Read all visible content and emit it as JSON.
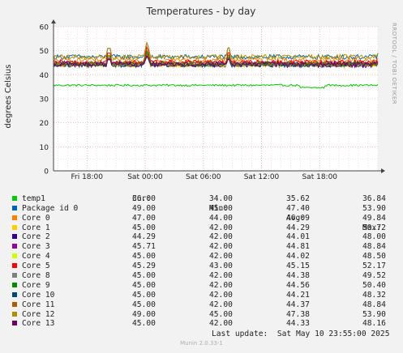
{
  "chart_data": {
    "type": "line",
    "title": "Temperatures - by day",
    "ylabel": "degrees Celsius",
    "ylim": [
      0,
      60
    ],
    "yticks": [
      0,
      10,
      20,
      30,
      40,
      50,
      60
    ],
    "x_ticks": [
      "Fri 18:00",
      "Sat 00:00",
      "Sat 06:00",
      "Sat 12:00",
      "Sat 18:00"
    ],
    "x_tick_hours": [
      0,
      6,
      12,
      18,
      24
    ],
    "x_start_hours": -3.45,
    "x_end_hours": 30.0,
    "grid": true,
    "legend_placement": "bottom",
    "side_label": "RRDTOOL / TOBI OETIKER",
    "columns": [
      "Cur:",
      "Min:",
      "Avg:",
      "Max:"
    ],
    "series": [
      {
        "name": "temp1",
        "color": "#00cc00",
        "cur": "36.00",
        "min": "34.00",
        "avg": "35.62",
        "max": "36.84"
      },
      {
        "name": "Package id 0",
        "color": "#0066b3",
        "cur": "49.00",
        "min": "45.00",
        "avg": "47.40",
        "max": "53.90"
      },
      {
        "name": "Core 0",
        "color": "#ff8000",
        "cur": "47.00",
        "min": "44.00",
        "avg": "46.09",
        "max": "49.84"
      },
      {
        "name": "Core 1",
        "color": "#ffcc00",
        "cur": "45.00",
        "min": "42.00",
        "avg": "44.29",
        "max": "50.72"
      },
      {
        "name": "Core 2",
        "color": "#330099",
        "cur": "44.29",
        "min": "42.00",
        "avg": "44.01",
        "max": "48.00"
      },
      {
        "name": "Core 3",
        "color": "#990099",
        "cur": "45.71",
        "min": "42.00",
        "avg": "44.81",
        "max": "48.84"
      },
      {
        "name": "Core 4",
        "color": "#ccff00",
        "cur": "45.00",
        "min": "42.00",
        "avg": "44.02",
        "max": "48.50"
      },
      {
        "name": "Core 5",
        "color": "#ff0000",
        "cur": "45.29",
        "min": "43.00",
        "avg": "45.15",
        "max": "52.17"
      },
      {
        "name": "Core 8",
        "color": "#808080",
        "cur": "45.00",
        "min": "42.00",
        "avg": "44.38",
        "max": "49.52"
      },
      {
        "name": "Core 9",
        "color": "#008f00",
        "cur": "45.00",
        "min": "42.00",
        "avg": "44.56",
        "max": "50.40"
      },
      {
        "name": "Core 10",
        "color": "#00487d",
        "cur": "45.00",
        "min": "42.00",
        "avg": "44.21",
        "max": "48.32"
      },
      {
        "name": "Core 11",
        "color": "#b35a00",
        "cur": "45.00",
        "min": "42.00",
        "avg": "44.37",
        "max": "48.84"
      },
      {
        "name": "Core 12",
        "color": "#b38f00",
        "cur": "49.00",
        "min": "45.00",
        "avg": "47.38",
        "max": "53.90"
      },
      {
        "name": "Core 13",
        "color": "#6b006b",
        "cur": "45.00",
        "min": "42.00",
        "avg": "44.33",
        "max": "48.16"
      }
    ]
  },
  "last_update": "Last update:  Sat May 10 23:55:00 2025",
  "footer": "Munin 2.0.33-1"
}
